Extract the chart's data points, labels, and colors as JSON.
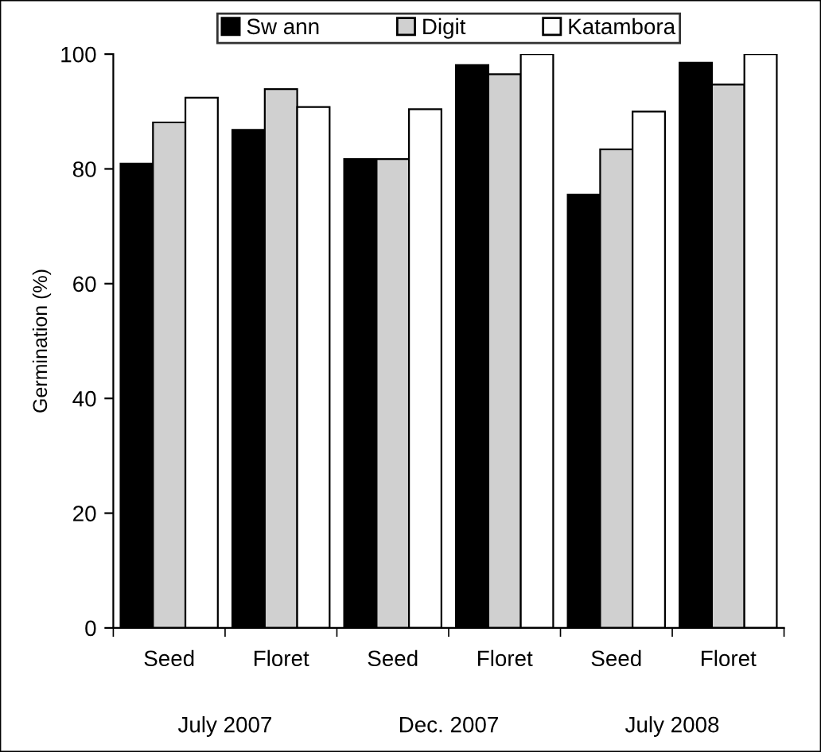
{
  "chart_data": {
    "type": "bar",
    "ylabel": "Germination (%)",
    "categories": [
      "Seed",
      "Floret",
      "Seed",
      "Floret",
      "Seed",
      "Floret"
    ],
    "series": [
      {
        "name": "Sw ann",
        "color": "#000000",
        "values": [
          80.9,
          86.8,
          81.7,
          98.1,
          75.5,
          98.5
        ]
      },
      {
        "name": "Digit",
        "color": "#d0d0d0",
        "values": [
          88.1,
          93.9,
          81.7,
          96.5,
          83.4,
          94.7
        ]
      },
      {
        "name": "Katambora",
        "color": "#ffffff",
        "values": [
          92.4,
          90.8,
          90.4,
          100,
          90.0,
          100
        ]
      }
    ],
    "ylim": [
      0,
      100
    ],
    "yticks": [
      0,
      20,
      40,
      60,
      80,
      100
    ],
    "grid": false,
    "legend": "top",
    "annotations": [
      "July 2007",
      "Dec. 2007",
      "July 2008"
    ]
  }
}
